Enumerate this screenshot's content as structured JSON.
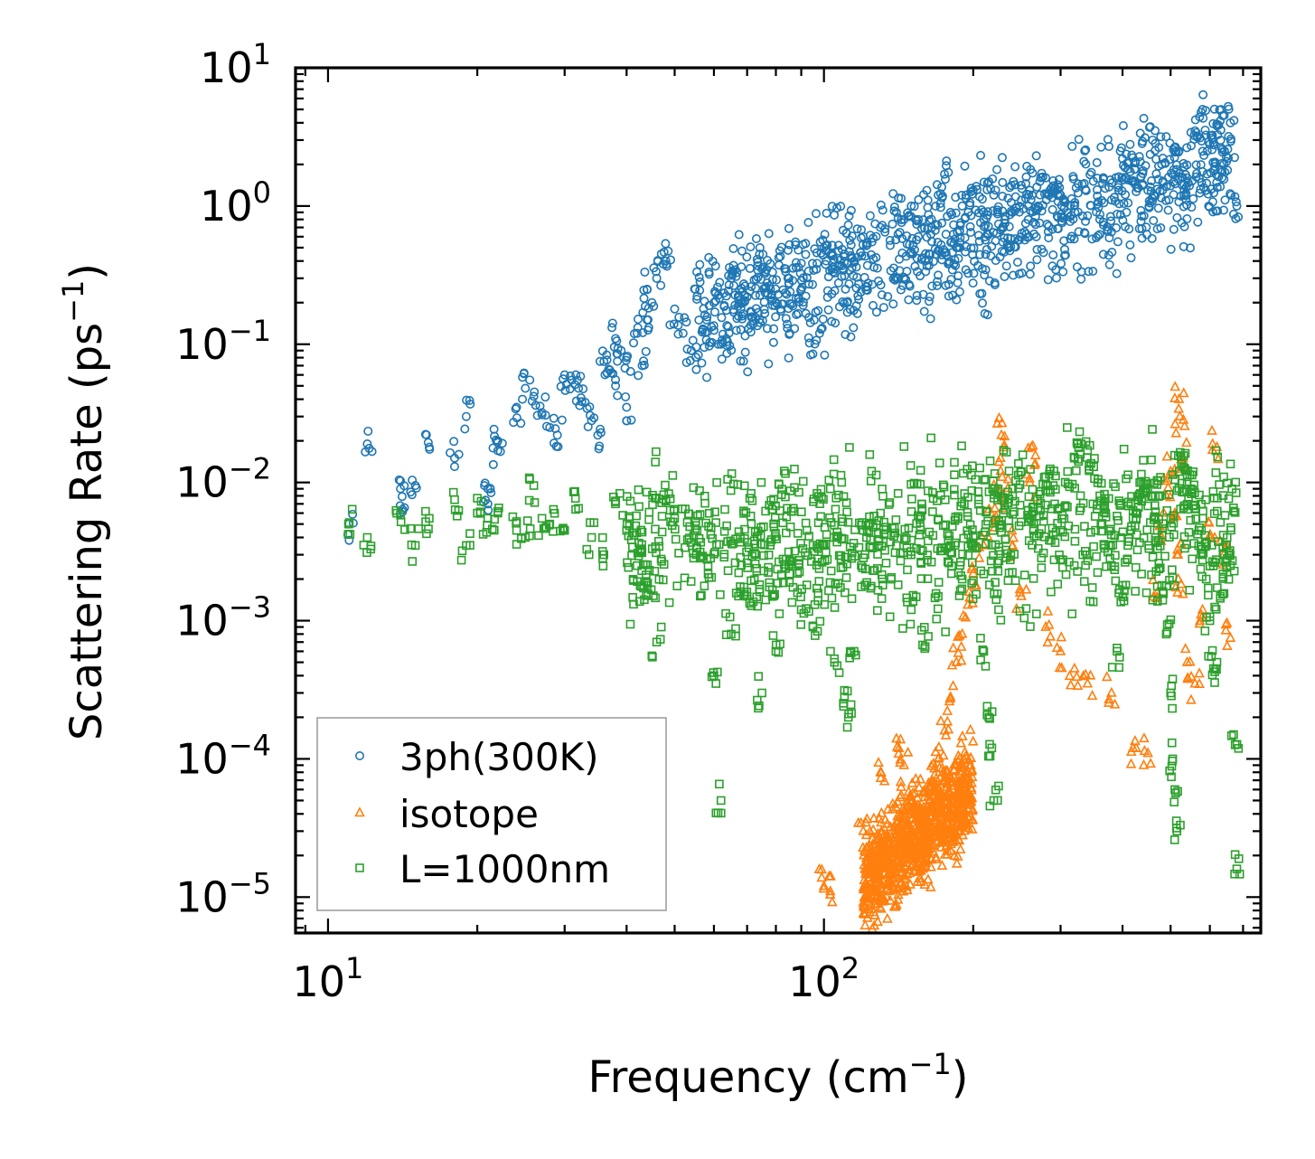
{
  "chart_data": {
    "type": "scatter",
    "xscale": "log",
    "yscale": "log",
    "xlim": [
      8.6,
      760
    ],
    "ylim": [
      5.5e-06,
      10
    ],
    "xlabel": {
      "base": "Frequency (cm",
      "sup": "−1",
      "tail": ")"
    },
    "ylabel": {
      "base": "Scattering Rate (ps",
      "sup": "−1",
      "tail": ")"
    },
    "x_ticks": [
      {
        "value": 10,
        "base": "10",
        "exp": "1"
      },
      {
        "value": 100,
        "base": "10",
        "exp": "2"
      }
    ],
    "y_ticks": [
      {
        "value": 10,
        "base": "10",
        "exp": "1"
      },
      {
        "value": 1,
        "base": "10",
        "exp": "0"
      },
      {
        "value": 0.1,
        "base": "10",
        "exp": "−1"
      },
      {
        "value": 0.01,
        "base": "10",
        "exp": "−2"
      },
      {
        "value": 0.001,
        "base": "10",
        "exp": "−3"
      },
      {
        "value": 0.0001,
        "base": "10",
        "exp": "−4"
      },
      {
        "value": 1e-05,
        "base": "10",
        "exp": "−5"
      }
    ],
    "legend_position": "lower-left",
    "series": [
      {
        "name": "3ph(300K)",
        "marker": "circle",
        "color": "#1f77b4",
        "points": [
          [
            11,
            0.005
          ],
          [
            12,
            0.019
          ],
          [
            14,
            0.009
          ],
          [
            14,
            0.006
          ],
          [
            15,
            0.0095
          ],
          [
            16,
            0.018
          ],
          [
            18,
            0.015
          ],
          [
            19,
            0.03
          ],
          [
            21,
            0.009
          ],
          [
            21,
            0.007
          ],
          [
            22,
            0.02
          ],
          [
            22,
            0.017
          ],
          [
            24,
            0.035
          ],
          [
            25,
            0.048
          ],
          [
            26,
            0.042
          ],
          [
            27,
            0.032
          ],
          [
            28,
            0.025
          ],
          [
            29,
            0.022
          ],
          [
            30,
            0.06
          ],
          [
            31,
            0.055
          ],
          [
            32,
            0.048
          ],
          [
            33,
            0.038
          ],
          [
            34,
            0.028
          ],
          [
            35,
            0.022
          ],
          [
            36,
            0.075
          ],
          [
            37,
            0.065
          ],
          [
            38,
            0.05
          ],
          [
            38,
            0.11
          ],
          [
            39,
            0.09
          ],
          [
            40,
            0.08
          ],
          [
            40,
            0.035
          ],
          [
            42,
            0.12
          ],
          [
            43,
            0.07
          ],
          [
            44,
            0.15
          ],
          [
            44,
            0.25
          ],
          [
            45,
            0.2
          ],
          [
            46,
            0.3
          ],
          [
            47,
            0.45
          ],
          [
            48,
            0.4
          ],
          [
            50,
            0.18
          ],
          [
            52,
            0.12
          ],
          [
            54,
            0.09
          ],
          [
            55,
            0.25
          ],
          [
            58,
            0.15
          ],
          [
            60,
            0.2
          ],
          [
            62,
            0.1
          ],
          [
            65,
            0.3
          ],
          [
            68,
            0.18
          ],
          [
            70,
            0.22
          ],
          [
            72,
            0.14
          ],
          [
            75,
            0.35
          ],
          [
            78,
            0.25
          ],
          [
            80,
            0.2
          ],
          [
            85,
            0.3
          ],
          [
            90,
            0.25
          ],
          [
            95,
            0.085
          ],
          [
            98,
            0.12
          ],
          [
            100,
            0.5
          ],
          [
            105,
            0.35
          ],
          [
            110,
            0.45
          ],
          [
            115,
            0.4
          ],
          [
            120,
            0.6
          ],
          [
            125,
            0.55
          ],
          [
            130,
            0.7
          ],
          [
            140,
            0.9
          ],
          [
            145,
            0.8
          ],
          [
            150,
            1.0
          ],
          [
            155,
            0.6
          ],
          [
            160,
            0.4
          ],
          [
            165,
            0.7
          ],
          [
            170,
            1.2
          ],
          [
            175,
            1.7
          ],
          [
            180,
            0.9
          ],
          [
            185,
            0.5
          ],
          [
            190,
            1.0
          ],
          [
            200,
            1.3
          ],
          [
            210,
            0.8
          ],
          [
            215,
            1.5
          ],
          [
            220,
            1.2
          ],
          [
            230,
            0.7
          ],
          [
            240,
            0.9
          ],
          [
            250,
            1.1
          ],
          [
            260,
            1.3
          ],
          [
            270,
            1.0
          ],
          [
            280,
            1.6
          ],
          [
            290,
            1.4
          ],
          [
            300,
            1.2
          ],
          [
            320,
            1.0
          ],
          [
            340,
            0.85
          ],
          [
            360,
            0.8
          ],
          [
            380,
            0.65
          ],
          [
            400,
            2.2
          ],
          [
            420,
            1.5
          ],
          [
            440,
            1.8
          ],
          [
            450,
            1.3
          ],
          [
            460,
            3.0
          ],
          [
            480,
            2.0
          ],
          [
            500,
            1.4
          ],
          [
            520,
            2.5
          ],
          [
            540,
            1.6
          ],
          [
            560,
            3.5
          ],
          [
            580,
            5.0
          ],
          [
            600,
            2.8
          ],
          [
            620,
            3.8
          ],
          [
            640,
            2.0
          ],
          [
            660,
            4.0
          ],
          [
            680,
            1.0
          ]
        ],
        "cloud": {
          "x_range": [
            55,
            680
          ],
          "log_y_center": [
            -0.8,
            0.3
          ],
          "spread": 0.45
        }
      },
      {
        "name": "isotope",
        "marker": "triangle",
        "color": "#ff7f0e",
        "points": [
          [
            100,
            1.2e-05
          ],
          [
            103,
            1.1e-05
          ],
          [
            120,
            3e-05
          ],
          [
            130,
            8e-05
          ],
          [
            140,
            0.00014
          ],
          [
            145,
            9e-05
          ],
          [
            150,
            5e-05
          ],
          [
            155,
            2e-05
          ],
          [
            160,
            4e-05
          ],
          [
            165,
            7e-05
          ],
          [
            170,
            0.0001
          ],
          [
            175,
            0.00016
          ],
          [
            180,
            0.00028
          ],
          [
            185,
            0.0005
          ],
          [
            190,
            0.0008
          ],
          [
            195,
            0.0013
          ],
          [
            200,
            0.0022
          ],
          [
            210,
            0.0035
          ],
          [
            220,
            0.0055
          ],
          [
            225,
            0.0085
          ],
          [
            227,
            0.015
          ],
          [
            228,
            0.022
          ],
          [
            230,
            0.008
          ],
          [
            240,
            0.0035
          ],
          [
            250,
            0.0015
          ],
          [
            260,
            0.01
          ],
          [
            262,
            0.018
          ],
          [
            280,
            0.0009
          ],
          [
            300,
            0.0006
          ],
          [
            320,
            0.00045
          ],
          [
            340,
            0.00035
          ],
          [
            380,
            0.0003
          ],
          [
            420,
            0.00012
          ],
          [
            450,
            0.00011
          ],
          [
            470,
            0.0016
          ],
          [
            480,
            0.004
          ],
          [
            490,
            0.008
          ],
          [
            500,
            0.012
          ],
          [
            510,
            0.006
          ],
          [
            515,
            0.003
          ],
          [
            518,
            0.002
          ],
          [
            520,
            0.04
          ],
          [
            522,
            0.03
          ],
          [
            530,
            0.015
          ],
          [
            540,
            0.0005
          ],
          [
            560,
            0.00035
          ],
          [
            580,
            0.0012
          ],
          [
            600,
            0.004
          ],
          [
            620,
            0.018
          ],
          [
            640,
            0.003
          ],
          [
            660,
            0.00075
          ]
        ],
        "cloud": {
          "x_range": [
            120,
            200
          ],
          "log_y_center": [
            -4.9,
            -4.2
          ],
          "spread": 0.35
        }
      },
      {
        "name": "L=1000nm",
        "marker": "square",
        "color": "#2ca02c",
        "points": [
          [
            11,
            0.005
          ],
          [
            12,
            0.004
          ],
          [
            14,
            0.0058
          ],
          [
            15,
            0.0035
          ],
          [
            16,
            0.0055
          ],
          [
            18,
            0.0075
          ],
          [
            19,
            0.0035
          ],
          [
            20,
            0.006
          ],
          [
            21,
            0.0055
          ],
          [
            22,
            0.006
          ],
          [
            24,
            0.0045
          ],
          [
            25,
            0.004
          ],
          [
            26,
            0.0095
          ],
          [
            27,
            0.0055
          ],
          [
            28,
            0.005
          ],
          [
            30,
            0.0045
          ],
          [
            32,
            0.0065
          ],
          [
            34,
            0.004
          ],
          [
            36,
            0.003
          ],
          [
            38,
            0.007
          ],
          [
            40,
            0.0045
          ],
          [
            42,
            0.0025
          ],
          [
            44,
            0.0018
          ],
          [
            46,
            0.0007
          ],
          [
            48,
            0.0075
          ],
          [
            50,
            0.0055
          ],
          [
            55,
            0.0045
          ],
          [
            60,
            0.0004
          ],
          [
            62,
            5e-05
          ],
          [
            65,
            0.0008
          ],
          [
            70,
            0.0015
          ],
          [
            75,
            0.0003
          ],
          [
            80,
            0.0006
          ],
          [
            85,
            0.0025
          ],
          [
            90,
            0.0012
          ],
          [
            95,
            0.0009
          ],
          [
            100,
            0.0035
          ],
          [
            105,
            0.0005
          ],
          [
            110,
            0.00028
          ],
          [
            112,
            0.0002
          ],
          [
            115,
            0.0006
          ],
          [
            120,
            0.0045
          ],
          [
            130,
            0.006
          ],
          [
            140,
            0.0035
          ],
          [
            150,
            0.0012
          ],
          [
            160,
            0.00065
          ],
          [
            170,
            0.0015
          ],
          [
            180,
            0.0035
          ],
          [
            190,
            0.002
          ],
          [
            200,
            0.004
          ],
          [
            210,
            0.0006
          ],
          [
            215,
            0.0002
          ],
          [
            218,
            0.00012
          ],
          [
            220,
            5e-05
          ],
          [
            225,
            0.0012
          ],
          [
            230,
            0.006
          ],
          [
            240,
            0.009
          ],
          [
            250,
            0.012
          ],
          [
            260,
            0.0055
          ],
          [
            270,
            0.0065
          ],
          [
            280,
            0.011
          ],
          [
            290,
            0.0095
          ],
          [
            300,
            0.0045
          ],
          [
            310,
            0.012
          ],
          [
            320,
            0.015
          ],
          [
            330,
            0.019
          ],
          [
            340,
            0.017
          ],
          [
            350,
            0.013
          ],
          [
            360,
            0.008
          ],
          [
            370,
            0.006
          ],
          [
            380,
            0.0025
          ],
          [
            390,
            0.0006
          ],
          [
            400,
            0.0018
          ],
          [
            410,
            0.0035
          ],
          [
            420,
            0.0055
          ],
          [
            430,
            0.0075
          ],
          [
            440,
            0.0085
          ],
          [
            450,
            0.009
          ],
          [
            460,
            0.008
          ],
          [
            470,
            0.0045
          ],
          [
            480,
            0.0018
          ],
          [
            490,
            0.0008
          ],
          [
            500,
            0.0003
          ],
          [
            505,
            0.0001
          ],
          [
            510,
            6e-05
          ],
          [
            515,
            3e-05
          ],
          [
            520,
            0.012
          ],
          [
            530,
            0.013
          ],
          [
            540,
            0.011
          ],
          [
            550,
            0.009
          ],
          [
            560,
            0.0065
          ],
          [
            570,
            0.0045
          ],
          [
            580,
            0.003
          ],
          [
            590,
            0.002
          ],
          [
            600,
            0.001
          ],
          [
            610,
            0.00045
          ],
          [
            620,
            0.0005
          ],
          [
            630,
            0.0015
          ],
          [
            640,
            0.003
          ],
          [
            650,
            0.004
          ],
          [
            660,
            0.0025
          ],
          [
            670,
            0.00015
          ],
          [
            680,
            1.6e-05
          ]
        ],
        "cloud": {
          "x_range": [
            40,
            680
          ],
          "log_y_center": [
            -2.5,
            -2.25
          ],
          "spread": 0.55
        }
      }
    ]
  }
}
